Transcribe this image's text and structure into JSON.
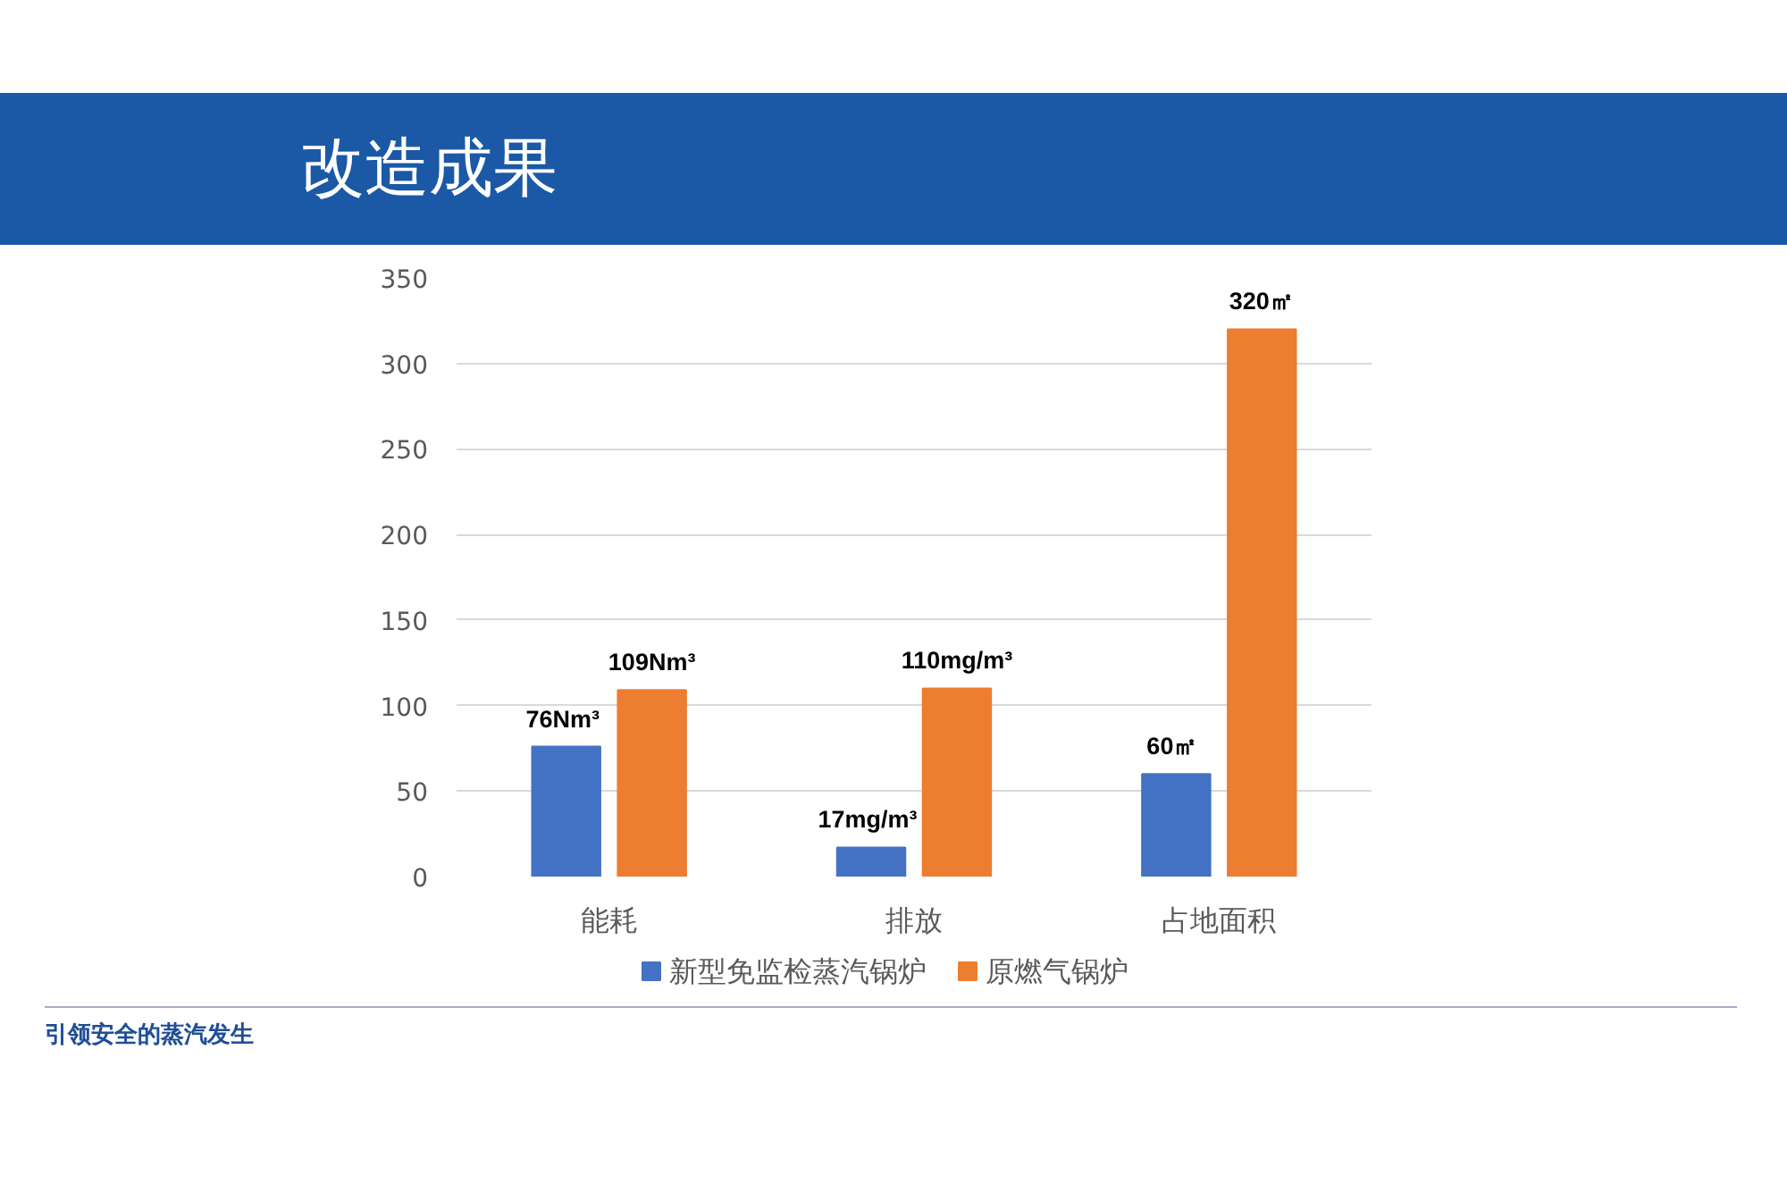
{
  "chart_data": {
    "type": "bar",
    "title": "改造成果",
    "categories": [
      "能耗",
      "排放",
      "占地面积"
    ],
    "series": [
      {
        "name": "新型免监检蒸汽锅炉",
        "color": "#4472c4",
        "values": [
          76,
          17,
          60
        ],
        "value_labels": [
          "76Nm³",
          "17mg/m³",
          "60㎡"
        ]
      },
      {
        "name": "原燃气锅炉",
        "color": "#ed7d31",
        "values": [
          109,
          110,
          320
        ],
        "value_labels": [
          "109Nm³",
          "110mg/m³",
          "320㎡"
        ]
      }
    ],
    "ylim": [
      0,
      350
    ],
    "yticks": [
      0,
      50,
      100,
      150,
      200,
      250,
      300,
      350
    ],
    "grid": "y",
    "legend": "bottom",
    "annotations": [
      "引领安全的蒸汽发生"
    ]
  }
}
